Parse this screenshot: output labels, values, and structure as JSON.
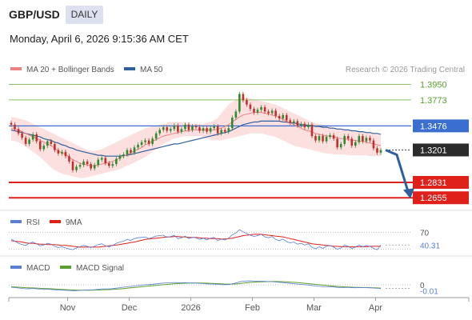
{
  "header": {
    "symbol": "GBP/USD",
    "timeframe": "DAILY",
    "datetime": "Monday, April 6, 2026 9:15:36 AM CET"
  },
  "legend": {
    "ma20": {
      "label": "MA 20 + Bollinger Bands",
      "color": "#f08080"
    },
    "ma50": {
      "label": "MA 50",
      "color": "#2f5f9e"
    },
    "credit": "Research © 2026 Trading Central"
  },
  "colors": {
    "resistance": "#8dc26a",
    "pivot": "#3a6fd0",
    "support": "#e0201b",
    "candle_up": "#2e8b2e",
    "candle_down": "#c0302b",
    "arrow": "#2f5f9e",
    "band": "#fbd6d6"
  },
  "chart_data": [
    {
      "type": "candlestick",
      "x_labels": [
        "Nov",
        "Dec",
        "2026",
        "Feb",
        "Mar",
        "Apr"
      ],
      "ylim": [
        1.252,
        1.4
      ],
      "levels": [
        {
          "value": "1.3950",
          "kind": "resistance"
        },
        {
          "value": "1.3773",
          "kind": "resistance"
        },
        {
          "value": "1.3476",
          "kind": "pivot"
        },
        {
          "value": "1.3201",
          "kind": "last"
        },
        {
          "value": "1.2831",
          "kind": "support"
        },
        {
          "value": "1.2655",
          "kind": "support"
        }
      ],
      "price": [
        1.349,
        1.344,
        1.339,
        1.334,
        1.327,
        1.332,
        1.338,
        1.33,
        1.321,
        1.325,
        1.33,
        1.327,
        1.32,
        1.316,
        1.318,
        1.313,
        1.307,
        1.297,
        1.301,
        1.303,
        1.307,
        1.304,
        1.299,
        1.303,
        1.309,
        1.311,
        1.305,
        1.302,
        1.304,
        1.31,
        1.313,
        1.315,
        1.32,
        1.317,
        1.323,
        1.326,
        1.329,
        1.331,
        1.327,
        1.333,
        1.339,
        1.343,
        1.346,
        1.342,
        1.344,
        1.348,
        1.341,
        1.344,
        1.349,
        1.343,
        1.347,
        1.346,
        1.342,
        1.345,
        1.341,
        1.345,
        1.347,
        1.339,
        1.343,
        1.341,
        1.345,
        1.357,
        1.364,
        1.384,
        1.377,
        1.372,
        1.367,
        1.363,
        1.366,
        1.369,
        1.364,
        1.362,
        1.365,
        1.359,
        1.356,
        1.36,
        1.354,
        1.351,
        1.353,
        1.348,
        1.35,
        1.346,
        1.349,
        1.336,
        1.331,
        1.336,
        1.33,
        1.335,
        1.337,
        1.333,
        1.323,
        1.327,
        1.336,
        1.333,
        1.325,
        1.329,
        1.336,
        1.33,
        1.334,
        1.331,
        1.322,
        1.317,
        1.32
      ],
      "ma20": [
        1.345,
        1.344,
        1.343,
        1.341,
        1.339,
        1.337,
        1.335,
        1.333,
        1.331,
        1.329,
        1.327,
        1.325,
        1.322,
        1.319,
        1.317,
        1.315,
        1.312,
        1.309,
        1.307,
        1.305,
        1.304,
        1.303,
        1.302,
        1.302,
        1.303,
        1.304,
        1.305,
        1.306,
        1.307,
        1.309,
        1.311,
        1.313,
        1.315,
        1.317,
        1.319,
        1.321,
        1.323,
        1.326,
        1.328,
        1.33,
        1.332,
        1.334,
        1.336,
        1.337,
        1.338,
        1.339,
        1.34,
        1.341,
        1.342,
        1.342,
        1.343,
        1.343,
        1.343,
        1.343,
        1.343,
        1.343,
        1.343,
        1.344,
        1.345,
        1.347,
        1.349,
        1.352,
        1.355,
        1.358,
        1.36,
        1.361,
        1.362,
        1.363,
        1.363,
        1.363,
        1.362,
        1.361,
        1.36,
        1.359,
        1.357,
        1.355,
        1.353,
        1.351,
        1.349,
        1.347,
        1.345,
        1.343,
        1.342,
        1.341,
        1.339,
        1.338,
        1.337,
        1.336,
        1.336,
        1.335,
        1.334,
        1.333,
        1.333,
        1.332,
        1.331,
        1.331,
        1.33,
        1.33,
        1.329,
        1.328,
        1.327,
        1.326,
        1.325
      ],
      "band_upper": [
        1.358,
        1.357,
        1.356,
        1.355,
        1.354,
        1.352,
        1.35,
        1.348,
        1.346,
        1.344,
        1.342,
        1.34,
        1.338,
        1.336,
        1.334,
        1.332,
        1.33,
        1.328,
        1.326,
        1.324,
        1.322,
        1.32,
        1.319,
        1.319,
        1.32,
        1.321,
        1.323,
        1.325,
        1.327,
        1.329,
        1.331,
        1.333,
        1.335,
        1.337,
        1.339,
        1.341,
        1.343,
        1.345,
        1.346,
        1.347,
        1.348,
        1.349,
        1.35,
        1.351,
        1.352,
        1.352,
        1.352,
        1.352,
        1.351,
        1.35,
        1.35,
        1.35,
        1.35,
        1.35,
        1.351,
        1.352,
        1.354,
        1.357,
        1.362,
        1.367,
        1.372,
        1.375,
        1.377,
        1.379,
        1.38,
        1.38,
        1.379,
        1.378,
        1.377,
        1.376,
        1.375,
        1.374,
        1.373,
        1.372,
        1.37,
        1.368,
        1.366,
        1.364,
        1.362,
        1.36,
        1.358,
        1.356,
        1.354,
        1.352,
        1.351,
        1.35,
        1.349,
        1.348,
        1.347,
        1.346,
        1.345,
        1.344,
        1.344,
        1.343,
        1.343,
        1.342,
        1.342,
        1.341,
        1.341,
        1.34,
        1.339,
        1.338,
        1.337
      ],
      "band_lower": [
        1.331,
        1.33,
        1.329,
        1.327,
        1.324,
        1.321,
        1.318,
        1.315,
        1.312,
        1.308,
        1.304,
        1.3,
        1.297,
        1.295,
        1.293,
        1.292,
        1.291,
        1.29,
        1.289,
        1.288,
        1.288,
        1.289,
        1.29,
        1.291,
        1.292,
        1.293,
        1.294,
        1.295,
        1.296,
        1.297,
        1.298,
        1.3,
        1.302,
        1.304,
        1.306,
        1.308,
        1.31,
        1.312,
        1.315,
        1.318,
        1.321,
        1.324,
        1.327,
        1.329,
        1.331,
        1.333,
        1.334,
        1.335,
        1.336,
        1.336,
        1.336,
        1.336,
        1.336,
        1.335,
        1.333,
        1.332,
        1.331,
        1.331,
        1.331,
        1.332,
        1.333,
        1.334,
        1.335,
        1.336,
        1.337,
        1.338,
        1.339,
        1.339,
        1.339,
        1.339,
        1.338,
        1.337,
        1.336,
        1.335,
        1.333,
        1.331,
        1.329,
        1.327,
        1.325,
        1.324,
        1.323,
        1.322,
        1.321,
        1.32,
        1.319,
        1.318,
        1.317,
        1.316,
        1.316,
        1.315,
        1.315,
        1.315,
        1.315,
        1.314,
        1.314,
        1.314,
        1.314,
        1.314,
        1.314,
        1.313,
        1.313,
        1.313,
        1.313
      ],
      "ma50": [
        1.343,
        1.342,
        1.341,
        1.34,
        1.339,
        1.338,
        1.337,
        1.336,
        1.335,
        1.333,
        1.332,
        1.331,
        1.329,
        1.328,
        1.326,
        1.325,
        1.323,
        1.322,
        1.32,
        1.319,
        1.318,
        1.317,
        1.316,
        1.315,
        1.314,
        1.314,
        1.313,
        1.313,
        1.313,
        1.313,
        1.313,
        1.314,
        1.314,
        1.315,
        1.316,
        1.317,
        1.318,
        1.319,
        1.32,
        1.321,
        1.322,
        1.323,
        1.324,
        1.325,
        1.326,
        1.327,
        1.327,
        1.328,
        1.329,
        1.33,
        1.331,
        1.332,
        1.333,
        1.334,
        1.335,
        1.336,
        1.337,
        1.338,
        1.339,
        1.34,
        1.341,
        1.343,
        1.345,
        1.347,
        1.349,
        1.35,
        1.351,
        1.352,
        1.352,
        1.353,
        1.353,
        1.353,
        1.353,
        1.353,
        1.353,
        1.352,
        1.352,
        1.351,
        1.351,
        1.35,
        1.349,
        1.349,
        1.348,
        1.348,
        1.347,
        1.347,
        1.346,
        1.346,
        1.345,
        1.345,
        1.344,
        1.344,
        1.343,
        1.343,
        1.342,
        1.342,
        1.341,
        1.341,
        1.34,
        1.34,
        1.339,
        1.339,
        1.338
      ],
      "projection": [
        1.3201,
        1.2655
      ]
    },
    {
      "type": "line",
      "legend": [
        {
          "label": "RSI",
          "color": "#5b7fd6"
        },
        {
          "label": "9MA",
          "color": "#e0201b"
        }
      ],
      "ylim": [
        18,
        78
      ],
      "levels": [
        "70",
        "40.31"
      ],
      "rsi": [
        54,
        49,
        44,
        41,
        39,
        44,
        47,
        43,
        38,
        40,
        44,
        42,
        37,
        34,
        36,
        33,
        31,
        29,
        33,
        36,
        39,
        37,
        34,
        37,
        41,
        43,
        38,
        36,
        39,
        44,
        47,
        49,
        53,
        51,
        55,
        57,
        58,
        59,
        55,
        58,
        61,
        62,
        63,
        58,
        60,
        63,
        55,
        57,
        61,
        55,
        58,
        57,
        53,
        56,
        52,
        56,
        58,
        50,
        54,
        52,
        56,
        64,
        68,
        76,
        71,
        67,
        63,
        60,
        62,
        65,
        59,
        57,
        60,
        53,
        50,
        54,
        48,
        45,
        47,
        42,
        44,
        40,
        43,
        35,
        31,
        36,
        32,
        37,
        39,
        35,
        30,
        33,
        40,
        37,
        32,
        35,
        40,
        36,
        39,
        37,
        32,
        29,
        40
      ],
      "ma9": [
        50,
        49,
        48,
        47,
        45,
        44,
        44,
        43,
        42,
        42,
        41,
        41,
        41,
        40,
        39,
        39,
        38,
        37,
        36,
        35,
        35,
        35,
        35,
        35,
        35,
        36,
        37,
        38,
        39,
        40,
        41,
        43,
        44,
        46,
        47,
        49,
        51,
        53,
        54,
        55,
        56,
        57,
        58,
        59,
        59,
        60,
        60,
        59,
        59,
        58,
        58,
        58,
        57,
        56,
        56,
        55,
        55,
        55,
        54,
        54,
        55,
        56,
        58,
        60,
        62,
        63,
        64,
        65,
        65,
        65,
        64,
        63,
        62,
        61,
        60,
        59,
        57,
        55,
        53,
        51,
        49,
        47,
        45,
        43,
        42,
        41,
        40,
        39,
        38,
        37,
        37,
        36,
        36,
        36,
        36,
        36,
        36,
        36,
        36,
        37,
        37,
        37,
        37
      ]
    },
    {
      "type": "line",
      "legend": [
        {
          "label": "MACD",
          "color": "#5b7fd6"
        },
        {
          "label": "MACD Signal",
          "color": "#5aa02c"
        }
      ],
      "ylim": [
        -0.013,
        0.013
      ],
      "levels": [
        "0",
        "-0.01"
      ],
      "macd": [
        -0.003,
        -0.0035,
        -0.004,
        -0.0045,
        -0.005,
        -0.0048,
        -0.0046,
        -0.005,
        -0.0056,
        -0.0058,
        -0.0056,
        -0.0058,
        -0.0062,
        -0.0066,
        -0.0067,
        -0.0069,
        -0.0071,
        -0.0075,
        -0.0073,
        -0.007,
        -0.0066,
        -0.0064,
        -0.0065,
        -0.0062,
        -0.0056,
        -0.0051,
        -0.0051,
        -0.0052,
        -0.0048,
        -0.0042,
        -0.0036,
        -0.003,
        -0.0024,
        -0.002,
        -0.0014,
        -0.0009,
        -0.0004,
        0.0001,
        0.0003,
        0.0007,
        0.0012,
        0.0017,
        0.0022,
        0.0024,
        0.0026,
        0.0029,
        0.0027,
        0.0025,
        0.0026,
        0.0023,
        0.0022,
        0.0021,
        0.0018,
        0.0016,
        0.0012,
        0.001,
        0.0009,
        0.0005,
        0.0003,
        0.0001,
        0.0003,
        0.0012,
        0.0022,
        0.0037,
        0.0045,
        0.0048,
        0.0048,
        0.0046,
        0.0045,
        0.0045,
        0.0043,
        0.0041,
        0.0039,
        0.0035,
        0.0031,
        0.0028,
        0.0023,
        0.0018,
        0.0014,
        0.0009,
        0.0005,
        0.0001,
        -0.0002,
        -0.0009,
        -0.0016,
        -0.0019,
        -0.0024,
        -0.0025,
        -0.0025,
        -0.0027,
        -0.0032,
        -0.0035,
        -0.0034,
        -0.0034,
        -0.0036,
        -0.0037,
        -0.0035,
        -0.0036,
        -0.0036,
        -0.0037,
        -0.004,
        -0.0044,
        -0.0046
      ],
      "signal": [
        -0.0025,
        -0.0027,
        -0.003,
        -0.0033,
        -0.0036,
        -0.0038,
        -0.0039,
        -0.0041,
        -0.0044,
        -0.0046,
        -0.0048,
        -0.005,
        -0.0052,
        -0.0055,
        -0.0057,
        -0.006,
        -0.0062,
        -0.0064,
        -0.0066,
        -0.0067,
        -0.0067,
        -0.0067,
        -0.0067,
        -0.0066,
        -0.0065,
        -0.0063,
        -0.0061,
        -0.006,
        -0.0058,
        -0.0055,
        -0.0051,
        -0.0047,
        -0.0043,
        -0.0038,
        -0.0034,
        -0.0029,
        -0.0024,
        -0.0019,
        -0.0015,
        -0.0011,
        -0.0007,
        -0.0003,
        0.0001,
        0.0005,
        0.0009,
        0.0013,
        0.0016,
        0.0018,
        0.002,
        0.0021,
        0.0022,
        0.0022,
        0.0022,
        0.0021,
        0.002,
        0.0018,
        0.0016,
        0.0014,
        0.0012,
        0.001,
        0.0009,
        0.0009,
        0.0011,
        0.0015,
        0.0021,
        0.0026,
        0.003,
        0.0033,
        0.0036,
        0.0038,
        0.0039,
        0.004,
        0.0041,
        0.0041,
        0.004,
        0.0039,
        0.0037,
        0.0034,
        0.0031,
        0.0027,
        0.0023,
        0.0019,
        0.0015,
        0.001,
        0.0005,
        0.0001,
        -0.0004,
        -0.0008,
        -0.0012,
        -0.0016,
        -0.002,
        -0.0023,
        -0.0026,
        -0.0028,
        -0.003,
        -0.0032,
        -0.0033,
        -0.0034,
        -0.0035,
        -0.0036,
        -0.0037,
        -0.0039,
        -0.0041
      ]
    }
  ]
}
